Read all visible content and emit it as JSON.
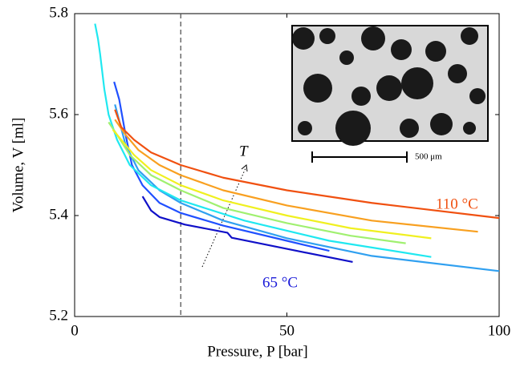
{
  "chart_data": {
    "type": "line",
    "xlabel": "Pressure, P [bar]",
    "ylabel": "Volume, V [ml]",
    "xlim": [
      0,
      100
    ],
    "xticks": [
      0,
      50,
      100
    ],
    "ylim": [
      5.2,
      5.8
    ],
    "yticks": [
      5.2,
      5.4,
      5.6,
      5.8
    ],
    "vline": 25,
    "annotations": [
      "110 °C",
      "65 °C",
      "T",
      "500 μm"
    ],
    "series": [
      {
        "color": "#1010c8",
        "x": [
          16,
          18,
          20,
          26,
          36,
          37,
          50,
          65.5
        ],
        "values": [
          5.438,
          5.41,
          5.397,
          5.382,
          5.366,
          5.356,
          5.334,
          5.308
        ]
      },
      {
        "color": "#2050ff",
        "x": [
          9.3,
          10.5,
          12,
          13.5,
          16,
          20,
          25,
          35,
          50,
          60
        ],
        "values": [
          5.665,
          5.63,
          5.56,
          5.5,
          5.46,
          5.425,
          5.405,
          5.38,
          5.35,
          5.33
        ]
      },
      {
        "color": "#30a0f0",
        "x": [
          9.5,
          12,
          15,
          20,
          25,
          35,
          50,
          70,
          100
        ],
        "values": [
          5.62,
          5.54,
          5.49,
          5.45,
          5.425,
          5.39,
          5.355,
          5.32,
          5.29
        ]
      },
      {
        "color": "#20e8f0",
        "x": [
          4.8,
          5.5,
          6,
          7,
          8,
          10,
          13,
          18,
          25,
          40,
          60,
          84
        ],
        "values": [
          5.78,
          5.75,
          5.72,
          5.65,
          5.6,
          5.55,
          5.5,
          5.46,
          5.43,
          5.39,
          5.35,
          5.318
        ]
      },
      {
        "color": "#a0f070",
        "x": [
          8,
          10,
          13,
          18,
          25,
          35,
          50,
          65,
          78
        ],
        "values": [
          5.585,
          5.56,
          5.52,
          5.48,
          5.45,
          5.415,
          5.385,
          5.36,
          5.345
        ]
      },
      {
        "color": "#f0f020",
        "x": [
          9,
          11,
          14,
          18,
          25,
          35,
          50,
          65,
          84
        ],
        "values": [
          5.57,
          5.55,
          5.52,
          5.49,
          5.46,
          5.43,
          5.4,
          5.375,
          5.355
        ]
      },
      {
        "color": "#f8a020",
        "x": [
          9.5,
          12,
          15,
          20,
          25,
          35,
          50,
          70,
          95
        ],
        "values": [
          5.59,
          5.56,
          5.53,
          5.5,
          5.48,
          5.45,
          5.42,
          5.39,
          5.368
        ]
      },
      {
        "color": "#f05010",
        "x": [
          9.5,
          11,
          14,
          18,
          25,
          35,
          50,
          70,
          100
        ],
        "values": [
          5.61,
          5.575,
          5.55,
          5.525,
          5.5,
          5.475,
          5.45,
          5.425,
          5.395
        ]
      }
    ]
  }
}
